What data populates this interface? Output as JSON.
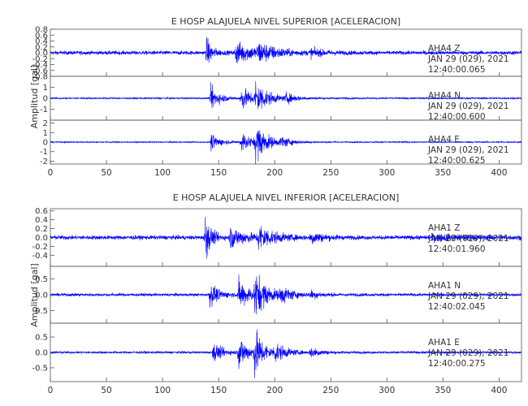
{
  "chart_data": [
    {
      "type": "line",
      "title": "E HOSP ALAJUELA NIVEL SUPERIOR [ACELERACION]",
      "ylabel": "Amplitud [gal]",
      "xlim": [
        0,
        420
      ],
      "xticks": [
        "0",
        "50",
        "100",
        "150",
        "200",
        "250",
        "300",
        "350",
        "400"
      ],
      "color": "#0000ff",
      "traces": [
        {
          "station": "AHA4",
          "component": "Z",
          "date": "JAN 29 (029), 2021",
          "time": "12:40:00.065",
          "ylim": [
            -0.8,
            0.8
          ],
          "yticks": [
            "0.8",
            "0.6",
            "0.4",
            "0.2",
            "0.0",
            "-0.2",
            "-0.4",
            "-0.6",
            "-0.8"
          ],
          "noise": 0.07,
          "bursts": [
            {
              "t": 139,
              "amp": 0.55,
              "w": 5
            },
            {
              "t": 165,
              "amp": 0.4,
              "w": 18
            },
            {
              "t": 185,
              "amp": 0.3,
              "w": 15
            },
            {
              "t": 232,
              "amp": 0.12,
              "w": 12
            }
          ]
        },
        {
          "station": "AHA4",
          "component": "N",
          "date": "JAN 29 (029), 2021",
          "time": "12:40:00.600",
          "ylim": [
            -2,
            2
          ],
          "yticks": [
            "1",
            "0",
            "-1"
          ],
          "noise": 0.08,
          "bursts": [
            {
              "t": 143,
              "amp": 1.2,
              "w": 8
            },
            {
              "t": 170,
              "amp": 1.1,
              "w": 12
            },
            {
              "t": 183,
              "amp": 1.5,
              "w": 10
            },
            {
              "t": 210,
              "amp": 0.4,
              "w": 10
            }
          ]
        },
        {
          "station": "AHA4",
          "component": "E",
          "date": "JAN 29 (029), 2021",
          "time": "12:40:00.625",
          "ylim": [
            -2.3,
            2.3
          ],
          "yticks": [
            "2",
            "1",
            "0",
            "-1",
            "-2"
          ],
          "noise": 0.07,
          "bursts": [
            {
              "t": 143,
              "amp": 1.0,
              "w": 8
            },
            {
              "t": 170,
              "amp": 1.2,
              "w": 10
            },
            {
              "t": 183,
              "amp": 2.0,
              "w": 10
            },
            {
              "t": 205,
              "amp": 0.5,
              "w": 10
            }
          ]
        }
      ]
    },
    {
      "type": "line",
      "title": "E HOSP ALAJUELA NIVEL INFERIOR [ACELERACION]",
      "ylabel": "Amplitud [gal]",
      "xlim": [
        0,
        420
      ],
      "xticks": [
        "0",
        "50",
        "100",
        "150",
        "200",
        "250",
        "300",
        "350",
        "400"
      ],
      "color": "#0000ff",
      "traces": [
        {
          "station": "AHA1",
          "component": "Z",
          "date": "JAN 29 (029), 2021",
          "time": "12:40:01.960",
          "ylim": [
            -0.65,
            0.65
          ],
          "yticks": [
            "0.6",
            "0.4",
            "0.2",
            "0.0",
            "-0.2",
            "-0.4"
          ],
          "noise": 0.05,
          "bursts": [
            {
              "t": 138,
              "amp": 0.55,
              "w": 5
            },
            {
              "t": 160,
              "amp": 0.25,
              "w": 15
            },
            {
              "t": 185,
              "amp": 0.3,
              "w": 12
            },
            {
              "t": 232,
              "amp": 0.15,
              "w": 10
            },
            {
              "t": 340,
              "amp": 0.06,
              "w": 40
            }
          ]
        },
        {
          "station": "AHA1",
          "component": "N",
          "date": "JAN 29 (029), 2021",
          "time": "12:40:02.045",
          "ylim": [
            -0.9,
            0.9
          ],
          "yticks": [
            "0.5",
            "0.0",
            "-0.5"
          ],
          "noise": 0.05,
          "bursts": [
            {
              "t": 142,
              "amp": 0.4,
              "w": 8
            },
            {
              "t": 168,
              "amp": 0.5,
              "w": 10
            },
            {
              "t": 182,
              "amp": 0.75,
              "w": 10
            },
            {
              "t": 205,
              "amp": 0.25,
              "w": 10
            },
            {
              "t": 232,
              "amp": 0.12,
              "w": 8
            }
          ]
        },
        {
          "station": "AHA1",
          "component": "E",
          "date": "JAN 29 (029), 2021",
          "time": "12:40:00.275",
          "ylim": [
            -0.95,
            0.95
          ],
          "yticks": [
            "0.5",
            "0.0",
            "-0.5"
          ],
          "noise": 0.04,
          "bursts": [
            {
              "t": 145,
              "amp": 0.35,
              "w": 8
            },
            {
              "t": 168,
              "amp": 0.6,
              "w": 8
            },
            {
              "t": 182,
              "amp": 0.8,
              "w": 8
            },
            {
              "t": 200,
              "amp": 0.3,
              "w": 10
            },
            {
              "t": 232,
              "amp": 0.2,
              "w": 8
            }
          ]
        }
      ]
    }
  ]
}
